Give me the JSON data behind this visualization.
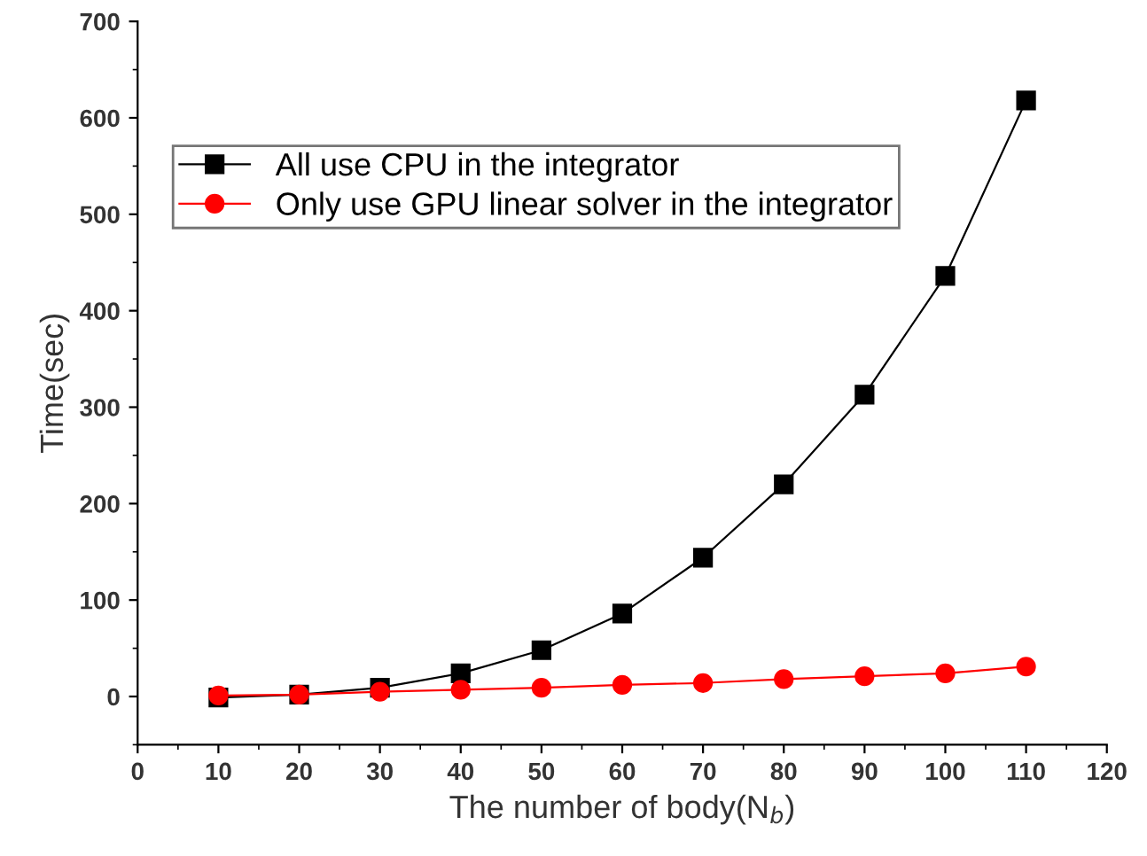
{
  "chart_data": {
    "type": "line",
    "xlabel": "The number of body(N$_{b}$)",
    "ylabel": "Time(sec)",
    "x": [
      10,
      20,
      30,
      40,
      50,
      60,
      70,
      80,
      90,
      100,
      110
    ],
    "series": [
      {
        "name": "All use CPU in the integrator",
        "color": "#000000",
        "marker": "square",
        "values": [
          -1,
          2,
          9,
          24,
          48,
          86,
          144,
          220,
          313,
          436,
          618
        ]
      },
      {
        "name": "Only use GPU linear solver in the integrator",
        "color": "#ff0000",
        "marker": "circle",
        "values": [
          1,
          2,
          5,
          7,
          9,
          12,
          14,
          18,
          21,
          24,
          31
        ]
      }
    ],
    "xlim": [
      0,
      120
    ],
    "xticks": [
      0,
      10,
      20,
      30,
      40,
      50,
      60,
      70,
      80,
      90,
      100,
      110,
      120
    ],
    "ylim": [
      -50,
      700
    ],
    "yticks": [
      0,
      100,
      200,
      300,
      400,
      500,
      600,
      700
    ],
    "legend": "top left",
    "grid": false,
    "line_style": "solid"
  }
}
